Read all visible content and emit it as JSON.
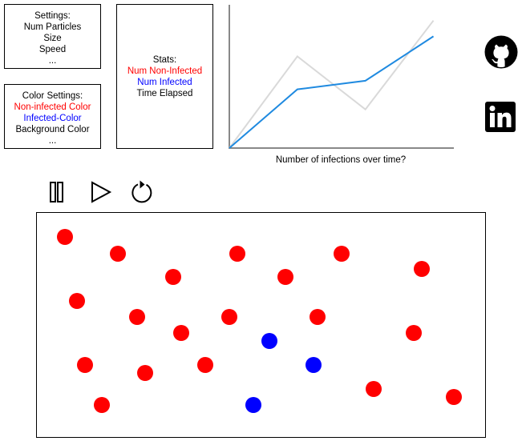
{
  "settings": {
    "title": "Settings:",
    "items": [
      "Num Particles",
      "Size",
      "Speed",
      "..."
    ]
  },
  "color_settings": {
    "title": "Color Settings:",
    "items": [
      {
        "label": "Non-infected Color",
        "color": "#ff0000"
      },
      {
        "label": "Infected-Color",
        "color": "#0000ff"
      },
      {
        "label": "Background Color",
        "color": "#000000"
      },
      {
        "label": "...",
        "color": "#000000"
      }
    ]
  },
  "stats": {
    "title": "Stats:",
    "items": [
      {
        "label": "Num Non-Infected",
        "color": "#ff0000"
      },
      {
        "label": "Num Infected",
        "color": "#0000ff"
      },
      {
        "label": "Time Elapsed",
        "color": "#000000"
      }
    ]
  },
  "chart_data": {
    "type": "line",
    "title": "",
    "xlabel": "Number of infections over time?",
    "ylabel": "",
    "x": [
      0,
      1,
      2,
      3
    ],
    "xlim": [
      0,
      3.3
    ],
    "ylim": [
      0,
      10
    ],
    "grid": false,
    "series": [
      {
        "values": [
          0,
          6.4,
          2.7,
          8.9
        ],
        "color": "#d9d9d9"
      },
      {
        "values": [
          0,
          4.1,
          4.7,
          7.8
        ],
        "color": "#1f8ae0"
      }
    ]
  },
  "social": {
    "github_icon": "github-icon",
    "linkedin_icon": "linkedin-icon"
  },
  "controls": {
    "pause_icon": "pause-icon",
    "play_icon": "play-icon",
    "restart_icon": "restart-icon"
  },
  "simulation": {
    "colors": {
      "non_infected": "#ff0000",
      "infected": "#0000ff"
    },
    "particles": [
      {
        "state": "non_infected"
      },
      {
        "state": "non_infected"
      },
      {
        "state": "non_infected"
      },
      {
        "state": "non_infected"
      },
      {
        "state": "non_infected"
      },
      {
        "state": "non_infected"
      },
      {
        "state": "non_infected"
      },
      {
        "state": "non_infected"
      },
      {
        "state": "non_infected"
      },
      {
        "state": "non_infected"
      },
      {
        "state": "non_infected"
      },
      {
        "state": "non_infected"
      },
      {
        "state": "non_infected"
      },
      {
        "state": "infected"
      },
      {
        "state": "non_infected"
      },
      {
        "state": "non_infected"
      },
      {
        "state": "non_infected"
      },
      {
        "state": "infected"
      },
      {
        "state": "non_infected"
      },
      {
        "state": "non_infected"
      },
      {
        "state": "non_infected"
      },
      {
        "state": "infected"
      },
      {
        "state": "non_infected"
      }
    ]
  }
}
